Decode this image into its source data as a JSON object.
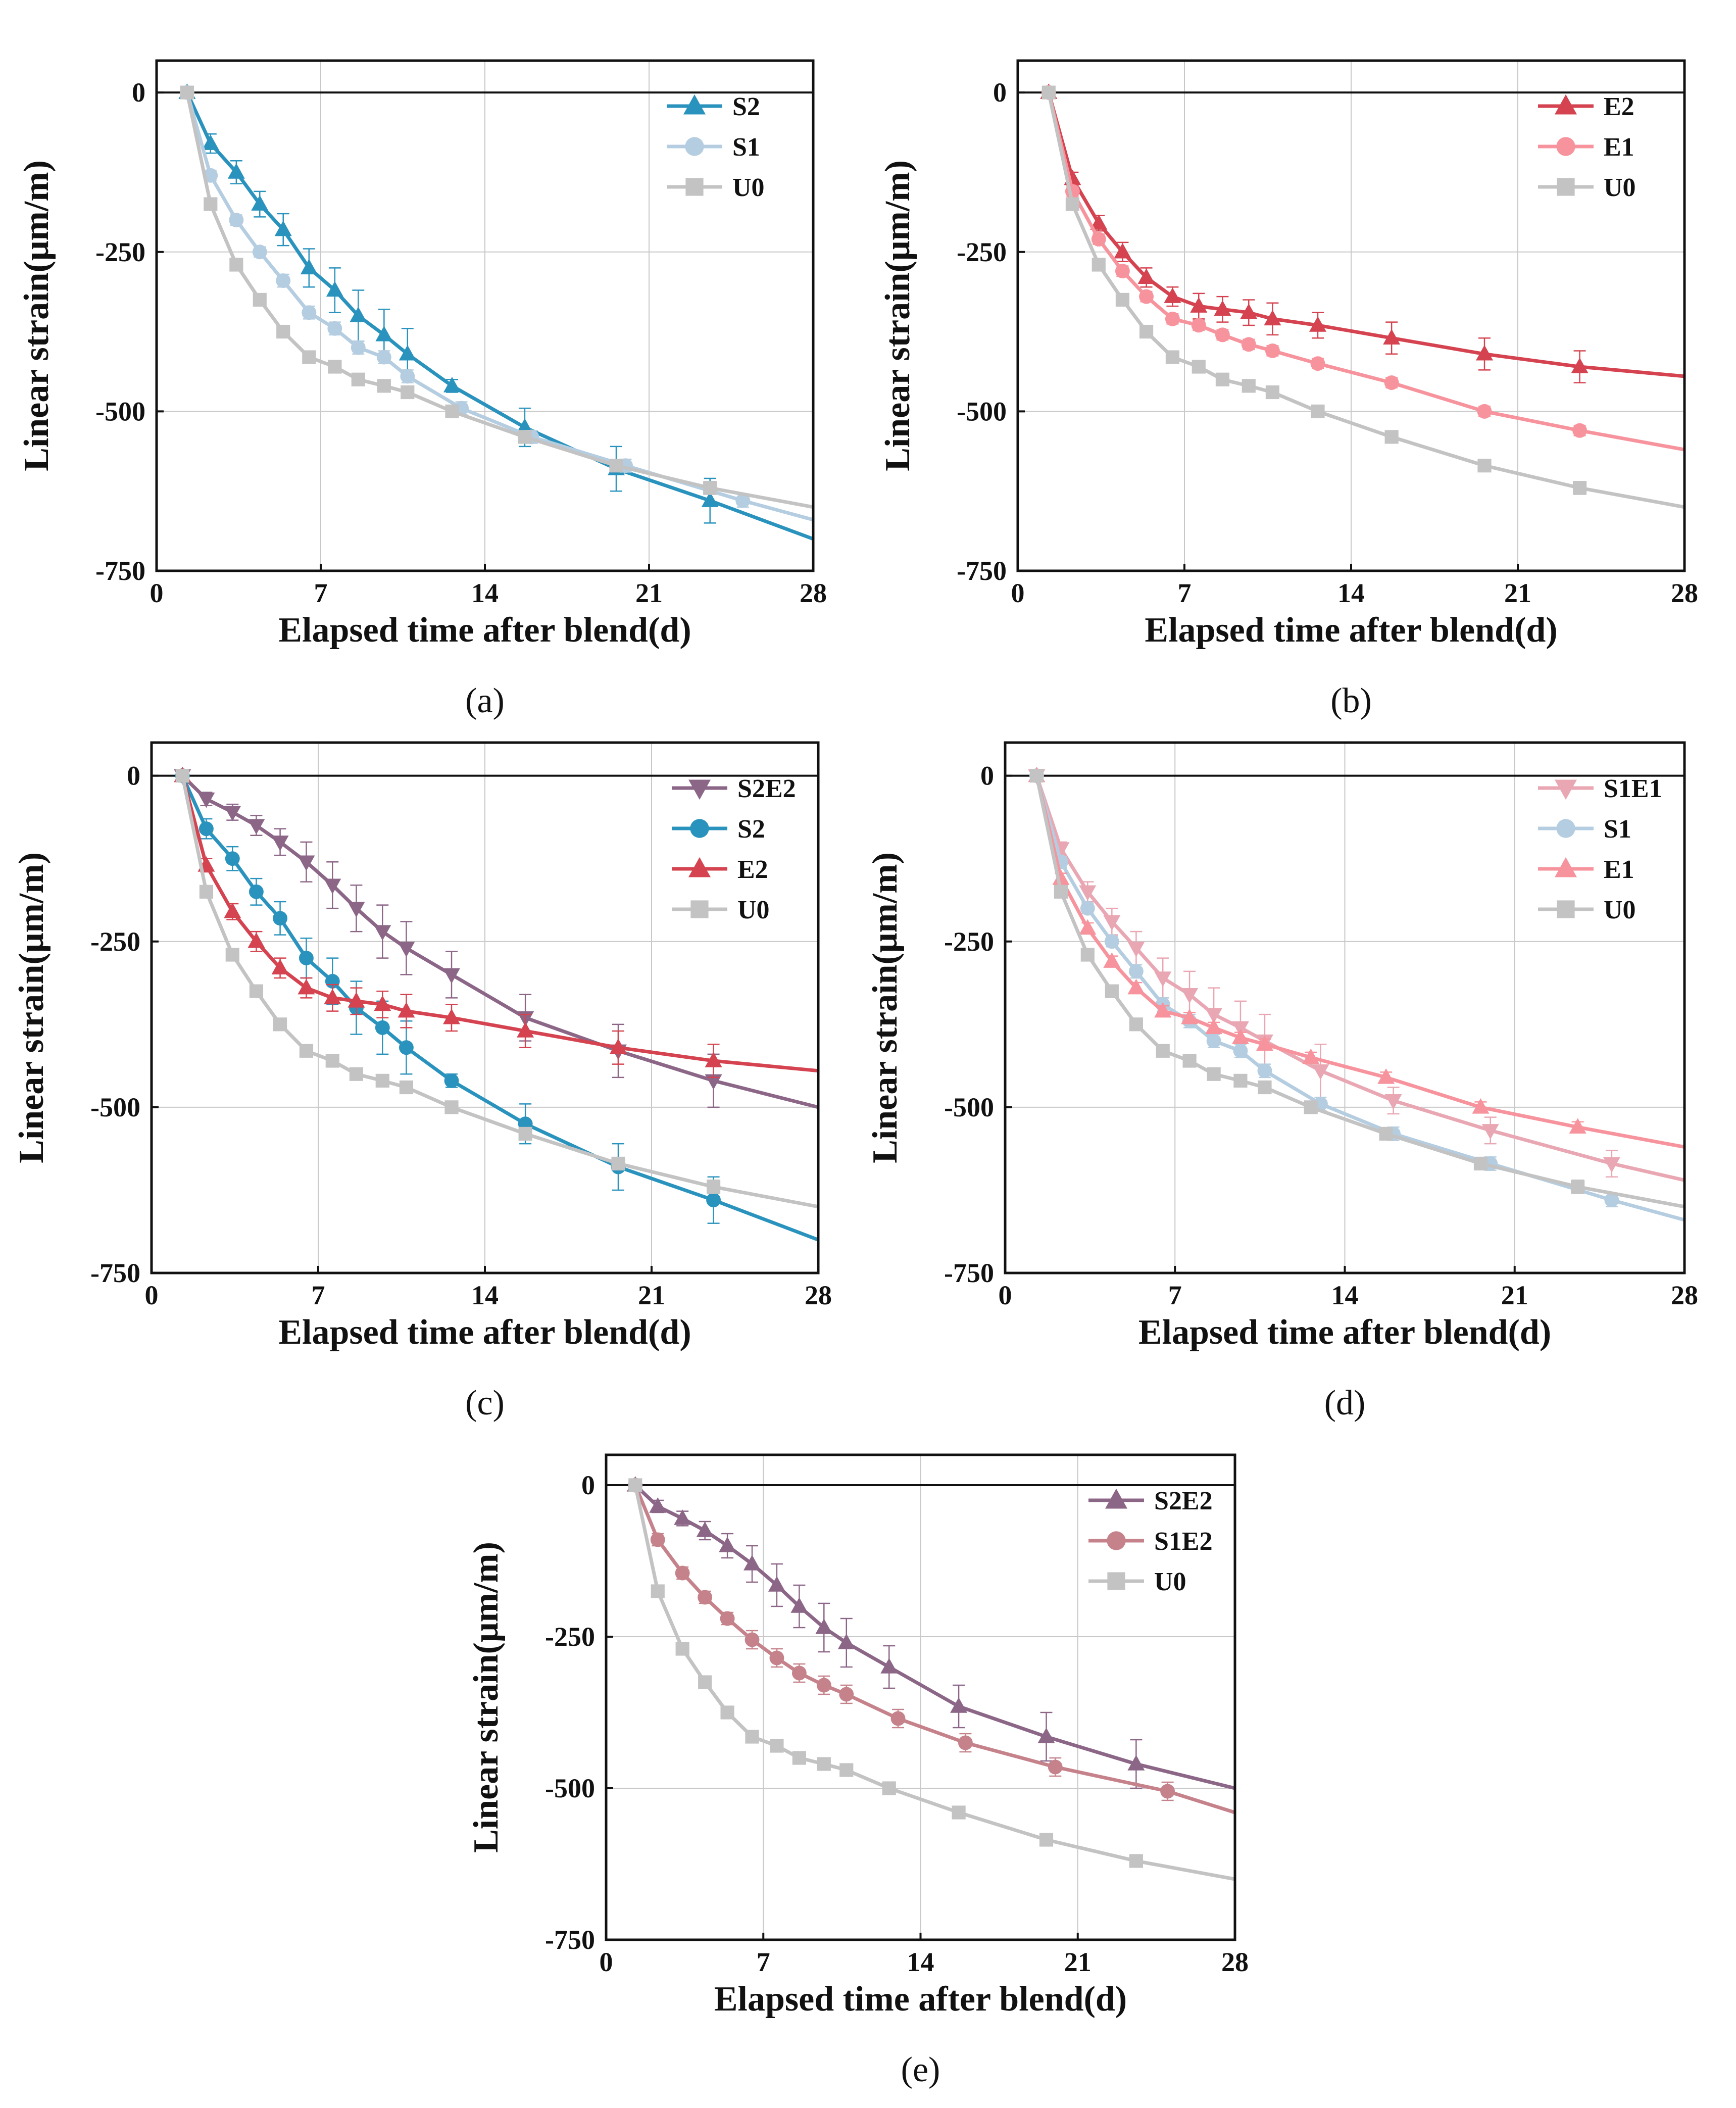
{
  "figure": {
    "panels": [
      {
        "id": "a",
        "label": "(a)"
      },
      {
        "id": "b",
        "label": "(b)"
      },
      {
        "id": "c",
        "label": "(c)"
      },
      {
        "id": "d",
        "label": "(d)"
      },
      {
        "id": "e",
        "label": "(e)"
      }
    ]
  },
  "colors": {
    "U0": "#c3c3c3",
    "S1": "#b5cde0",
    "S2": "#2a93bd",
    "E1": "#f7939c",
    "E2": "#d4434f",
    "S1E1": "#e9a7b3",
    "S2E2": "#8c6687",
    "S1E2": "#c6828b"
  },
  "chart_data": [
    {
      "panel": "a",
      "panel_label": "(a)",
      "type": "line",
      "xlabel": "Elapsed time after blend(d)",
      "ylabel": "Linear strain(μm/m)",
      "xlim": [
        0,
        28
      ],
      "ylim": [
        -750,
        50
      ],
      "xticks": [
        "0",
        "7",
        "14",
        "21",
        "28"
      ],
      "yticks": [
        "0",
        "-250",
        "-500",
        "-750"
      ],
      "legend_position": "top-right",
      "series": [
        {
          "name": "S2",
          "marker": "triangle-up",
          "color_key": "S2",
          "x": [
            1.3,
            2.3,
            3.4,
            4.4,
            5.4,
            6.5,
            7.6,
            8.6,
            9.7,
            10.7,
            12.6,
            15.7,
            19.6,
            23.6,
            28
          ],
          "y": [
            0,
            -80,
            -125,
            -175,
            -215,
            -275,
            -310,
            -350,
            -380,
            -410,
            -460,
            -525,
            -590,
            -640,
            -700
          ],
          "err": [
            0,
            15,
            18,
            20,
            25,
            30,
            35,
            40,
            40,
            40,
            10,
            30,
            35,
            35,
            0
          ]
        },
        {
          "name": "S1",
          "marker": "circle",
          "color_key": "S1",
          "x": [
            1.3,
            2.3,
            3.4,
            4.4,
            5.4,
            6.5,
            7.6,
            8.6,
            9.7,
            10.7,
            13,
            16,
            20,
            25,
            28
          ],
          "y": [
            0,
            -130,
            -200,
            -250,
            -295,
            -345,
            -370,
            -400,
            -415,
            -445,
            -495,
            -540,
            -585,
            -640,
            -670
          ],
          "err": [
            0,
            8,
            8,
            8,
            10,
            10,
            10,
            10,
            10,
            10,
            10,
            10,
            10,
            10,
            0
          ]
        },
        {
          "name": "U0",
          "marker": "square",
          "color_key": "U0",
          "x": [
            1.3,
            2.3,
            3.4,
            4.4,
            5.4,
            6.5,
            7.6,
            8.6,
            9.7,
            10.7,
            12.6,
            15.7,
            19.6,
            23.6,
            28
          ],
          "y": [
            0,
            -175,
            -270,
            -325,
            -375,
            -415,
            -430,
            -450,
            -460,
            -470,
            -500,
            -540,
            -585,
            -620,
            -650
          ],
          "err": [
            0,
            5,
            5,
            5,
            5,
            5,
            5,
            5,
            5,
            5,
            5,
            5,
            5,
            10,
            0
          ]
        }
      ]
    },
    {
      "panel": "b",
      "panel_label": "(b)",
      "type": "line",
      "xlabel": "Elapsed time after blend(d)",
      "ylabel": "Linear strain(μm/m)",
      "xlim": [
        0,
        28
      ],
      "ylim": [
        -750,
        50
      ],
      "xticks": [
        "0",
        "7",
        "14",
        "21",
        "28"
      ],
      "yticks": [
        "0",
        "-250",
        "-500",
        "-750"
      ],
      "legend_position": "top-right",
      "series": [
        {
          "name": "E2",
          "marker": "triangle-up",
          "color_key": "E2",
          "x": [
            1.3,
            2.3,
            3.4,
            4.4,
            5.4,
            6.5,
            7.6,
            8.6,
            9.7,
            10.7,
            12.6,
            15.7,
            19.6,
            23.6,
            28
          ],
          "y": [
            0,
            -135,
            -205,
            -250,
            -290,
            -320,
            -335,
            -340,
            -345,
            -355,
            -365,
            -385,
            -410,
            -430,
            -445
          ],
          "err": [
            0,
            10,
            12,
            15,
            15,
            15,
            20,
            20,
            20,
            25,
            20,
            25,
            25,
            25,
            0
          ]
        },
        {
          "name": "E1",
          "marker": "circle",
          "color_key": "E1",
          "x": [
            1.3,
            2.3,
            3.4,
            4.4,
            5.4,
            6.5,
            7.6,
            8.6,
            9.7,
            10.7,
            12.6,
            15.7,
            19.6,
            23.6,
            28
          ],
          "y": [
            0,
            -155,
            -230,
            -280,
            -320,
            -355,
            -365,
            -380,
            -395,
            -405,
            -425,
            -455,
            -500,
            -530,
            -560
          ],
          "err": [
            0,
            8,
            8,
            8,
            8,
            8,
            8,
            8,
            8,
            8,
            8,
            8,
            8,
            8,
            0
          ]
        },
        {
          "name": "U0",
          "marker": "square",
          "color_key": "U0",
          "x": [
            1.3,
            2.3,
            3.4,
            4.4,
            5.4,
            6.5,
            7.6,
            8.6,
            9.7,
            10.7,
            12.6,
            15.7,
            19.6,
            23.6,
            28
          ],
          "y": [
            0,
            -175,
            -270,
            -325,
            -375,
            -415,
            -430,
            -450,
            -460,
            -470,
            -500,
            -540,
            -585,
            -620,
            -650
          ],
          "err": [
            0,
            5,
            5,
            5,
            5,
            5,
            5,
            5,
            5,
            5,
            5,
            5,
            5,
            10,
            0
          ]
        }
      ]
    },
    {
      "panel": "c",
      "panel_label": "(c)",
      "type": "line",
      "xlabel": "Elapsed time after blend(d)",
      "ylabel": "Linear strain(μm/m)",
      "xlim": [
        0,
        28
      ],
      "ylim": [
        -750,
        50
      ],
      "xticks": [
        "0",
        "7",
        "14",
        "21",
        "28"
      ],
      "yticks": [
        "0",
        "-250",
        "-500",
        "-750"
      ],
      "legend_position": "top-right",
      "series": [
        {
          "name": "S2E2",
          "marker": "triangle-down",
          "color_key": "S2E2",
          "x": [
            1.3,
            2.3,
            3.4,
            4.4,
            5.4,
            6.5,
            7.6,
            8.6,
            9.7,
            10.7,
            12.6,
            15.7,
            19.6,
            23.6,
            28
          ],
          "y": [
            0,
            -35,
            -55,
            -75,
            -100,
            -130,
            -165,
            -200,
            -235,
            -260,
            -300,
            -365,
            -415,
            -460,
            -500
          ],
          "err": [
            0,
            10,
            12,
            15,
            20,
            30,
            35,
            35,
            40,
            40,
            35,
            35,
            40,
            40,
            0
          ]
        },
        {
          "name": "S2",
          "marker": "circle",
          "color_key": "S2",
          "x": [
            1.3,
            2.3,
            3.4,
            4.4,
            5.4,
            6.5,
            7.6,
            8.6,
            9.7,
            10.7,
            12.6,
            15.7,
            19.6,
            23.6,
            28
          ],
          "y": [
            0,
            -80,
            -125,
            -175,
            -215,
            -275,
            -310,
            -350,
            -380,
            -410,
            -460,
            -525,
            -590,
            -640,
            -700
          ],
          "err": [
            0,
            15,
            18,
            20,
            25,
            30,
            35,
            40,
            40,
            40,
            10,
            30,
            35,
            35,
            0
          ]
        },
        {
          "name": "E2",
          "marker": "triangle-up",
          "color_key": "E2",
          "x": [
            1.3,
            2.3,
            3.4,
            4.4,
            5.4,
            6.5,
            7.6,
            8.6,
            9.7,
            10.7,
            12.6,
            15.7,
            19.6,
            23.6,
            28
          ],
          "y": [
            0,
            -135,
            -205,
            -250,
            -290,
            -320,
            -335,
            -340,
            -345,
            -355,
            -365,
            -385,
            -410,
            -430,
            -445
          ],
          "err": [
            0,
            10,
            12,
            15,
            15,
            15,
            20,
            20,
            20,
            25,
            20,
            25,
            25,
            25,
            0
          ]
        },
        {
          "name": "U0",
          "marker": "square",
          "color_key": "U0",
          "x": [
            1.3,
            2.3,
            3.4,
            4.4,
            5.4,
            6.5,
            7.6,
            8.6,
            9.7,
            10.7,
            12.6,
            15.7,
            19.6,
            23.6,
            28
          ],
          "y": [
            0,
            -175,
            -270,
            -325,
            -375,
            -415,
            -430,
            -450,
            -460,
            -470,
            -500,
            -540,
            -585,
            -620,
            -650
          ],
          "err": [
            0,
            5,
            5,
            5,
            5,
            5,
            5,
            5,
            5,
            5,
            5,
            5,
            5,
            10,
            0
          ]
        }
      ]
    },
    {
      "panel": "d",
      "panel_label": "(d)",
      "type": "line",
      "xlabel": "Elapsed time after blend(d)",
      "ylabel": "Linear strain(μm/m)",
      "xlim": [
        0,
        28
      ],
      "ylim": [
        -750,
        50
      ],
      "xticks": [
        "0",
        "7",
        "14",
        "21",
        "28"
      ],
      "yticks": [
        "0",
        "-250",
        "-500",
        "-750"
      ],
      "legend_position": "top-right",
      "series": [
        {
          "name": "S1E1",
          "marker": "triangle-down",
          "color_key": "S1E1",
          "x": [
            1.3,
            2.3,
            3.4,
            4.4,
            5.4,
            6.5,
            7.6,
            8.6,
            9.7,
            10.7,
            13,
            16,
            20,
            25,
            28
          ],
          "y": [
            0,
            -110,
            -175,
            -220,
            -260,
            -305,
            -330,
            -360,
            -380,
            -400,
            -445,
            -490,
            -535,
            -585,
            -610
          ],
          "err": [
            0,
            10,
            15,
            20,
            25,
            30,
            35,
            40,
            40,
            40,
            40,
            20,
            20,
            20,
            0
          ]
        },
        {
          "name": "S1",
          "marker": "circle",
          "color_key": "S1",
          "x": [
            1.3,
            2.3,
            3.4,
            4.4,
            5.4,
            6.5,
            7.6,
            8.6,
            9.7,
            10.7,
            13,
            16,
            20,
            25,
            28
          ],
          "y": [
            0,
            -130,
            -200,
            -250,
            -295,
            -345,
            -370,
            -400,
            -415,
            -445,
            -495,
            -540,
            -585,
            -640,
            -670
          ],
          "err": [
            0,
            8,
            8,
            8,
            10,
            10,
            10,
            10,
            10,
            10,
            10,
            10,
            10,
            10,
            0
          ]
        },
        {
          "name": "E1",
          "marker": "triangle-up",
          "color_key": "E1",
          "x": [
            1.3,
            2.3,
            3.4,
            4.4,
            5.4,
            6.5,
            7.6,
            8.6,
            9.7,
            10.7,
            12.6,
            15.7,
            19.6,
            23.6,
            28
          ],
          "y": [
            0,
            -155,
            -230,
            -280,
            -320,
            -355,
            -365,
            -380,
            -395,
            -405,
            -425,
            -455,
            -500,
            -530,
            -560
          ],
          "err": [
            0,
            8,
            8,
            8,
            8,
            8,
            8,
            8,
            8,
            8,
            8,
            8,
            8,
            8,
            0
          ]
        },
        {
          "name": "U0",
          "marker": "square",
          "color_key": "U0",
          "x": [
            1.3,
            2.3,
            3.4,
            4.4,
            5.4,
            6.5,
            7.6,
            8.6,
            9.7,
            10.7,
            12.6,
            15.7,
            19.6,
            23.6,
            28
          ],
          "y": [
            0,
            -175,
            -270,
            -325,
            -375,
            -415,
            -430,
            -450,
            -460,
            -470,
            -500,
            -540,
            -585,
            -620,
            -650
          ],
          "err": [
            0,
            5,
            5,
            5,
            5,
            5,
            5,
            5,
            5,
            5,
            5,
            5,
            5,
            10,
            0
          ]
        }
      ]
    },
    {
      "panel": "e",
      "panel_label": "(e)",
      "type": "line",
      "xlabel": "Elapsed time after blend(d)",
      "ylabel": "Linear strain(μm/m)",
      "xlim": [
        0,
        28
      ],
      "ylim": [
        -750,
        50
      ],
      "xticks": [
        "0",
        "7",
        "14",
        "21",
        "28"
      ],
      "yticks": [
        "0",
        "-250",
        "-500",
        "-750"
      ],
      "legend_position": "top-right",
      "series": [
        {
          "name": "S2E2",
          "marker": "triangle-up",
          "color_key": "S2E2",
          "x": [
            1.3,
            2.3,
            3.4,
            4.4,
            5.4,
            6.5,
            7.6,
            8.6,
            9.7,
            10.7,
            12.6,
            15.7,
            19.6,
            23.6,
            28
          ],
          "y": [
            0,
            -35,
            -55,
            -75,
            -100,
            -130,
            -165,
            -200,
            -235,
            -260,
            -300,
            -365,
            -415,
            -460,
            -500
          ],
          "err": [
            0,
            10,
            12,
            15,
            20,
            30,
            35,
            35,
            40,
            40,
            35,
            35,
            40,
            40,
            0
          ]
        },
        {
          "name": "S1E2",
          "marker": "circle",
          "color_key": "S1E2",
          "x": [
            1.3,
            2.3,
            3.4,
            4.4,
            5.4,
            6.5,
            7.6,
            8.6,
            9.7,
            10.7,
            13,
            16,
            20,
            25,
            28
          ],
          "y": [
            0,
            -90,
            -145,
            -185,
            -220,
            -255,
            -285,
            -310,
            -330,
            -345,
            -385,
            -425,
            -465,
            -505,
            -540
          ],
          "err": [
            0,
            10,
            10,
            10,
            10,
            15,
            15,
            15,
            15,
            15,
            15,
            15,
            15,
            15,
            0
          ]
        },
        {
          "name": "U0",
          "marker": "square",
          "color_key": "U0",
          "x": [
            1.3,
            2.3,
            3.4,
            4.4,
            5.4,
            6.5,
            7.6,
            8.6,
            9.7,
            10.7,
            12.6,
            15.7,
            19.6,
            23.6,
            28
          ],
          "y": [
            0,
            -175,
            -270,
            -325,
            -375,
            -415,
            -430,
            -450,
            -460,
            -470,
            -500,
            -540,
            -585,
            -620,
            -650
          ],
          "err": [
            0,
            5,
            5,
            5,
            5,
            5,
            5,
            5,
            5,
            5,
            5,
            5,
            5,
            10,
            0
          ]
        }
      ]
    }
  ]
}
